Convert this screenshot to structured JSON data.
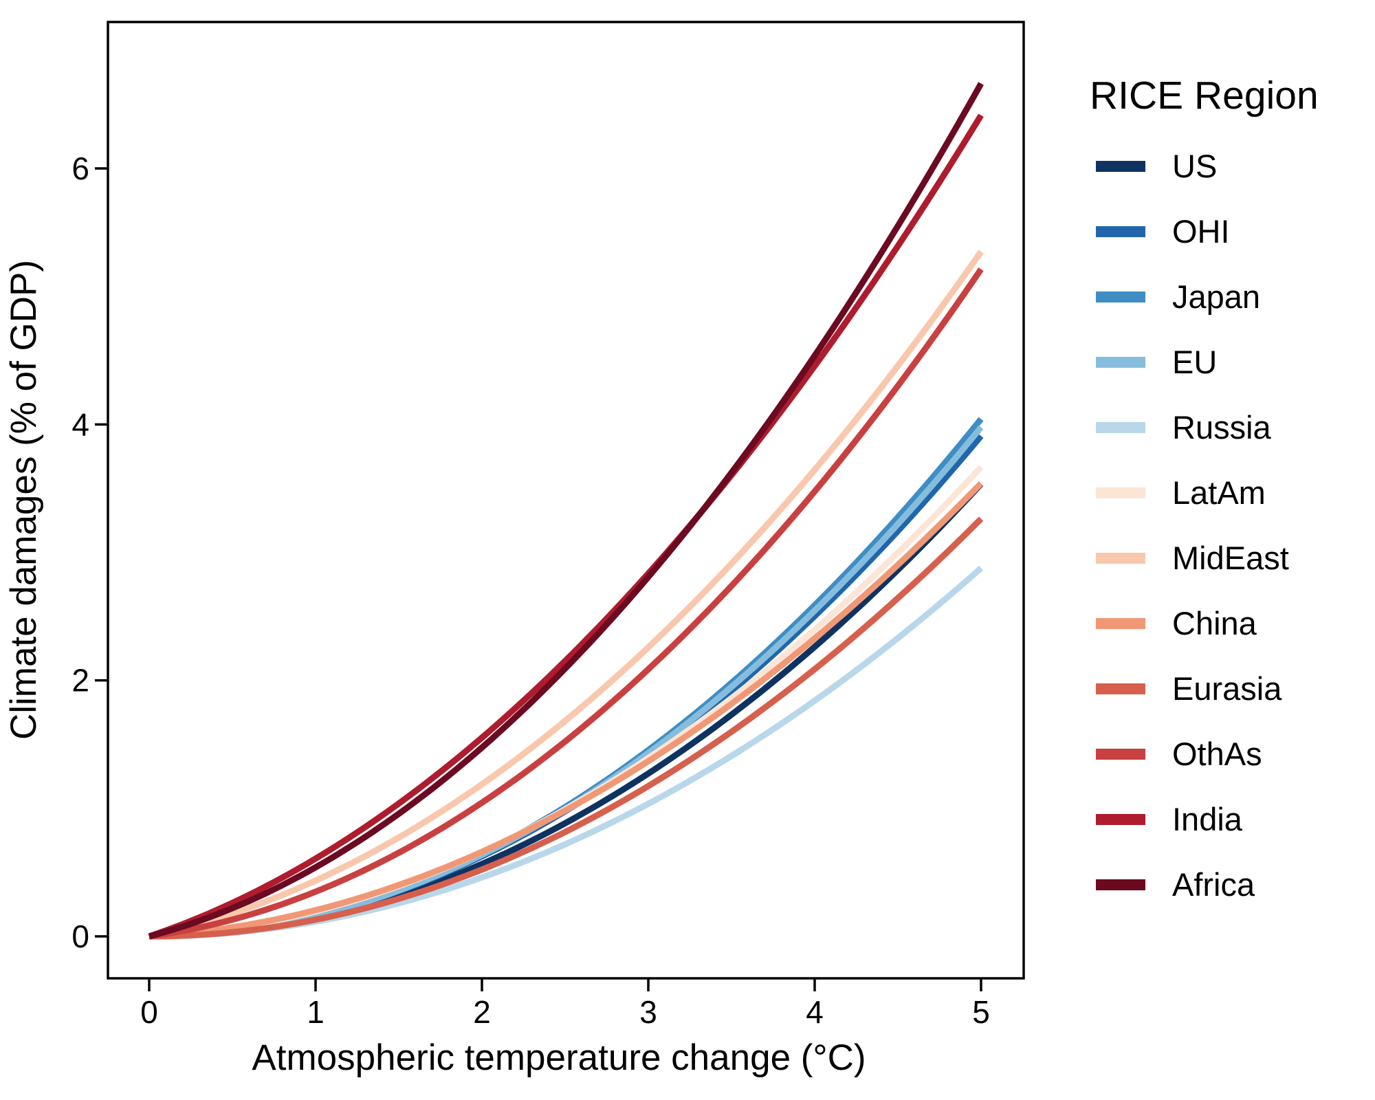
{
  "chart_data": {
    "type": "line",
    "title": "",
    "xlabel": "Atmospheric temperature change (°C)",
    "ylabel": "Climate damages (% of GDP)",
    "legend_title": "RICE Region",
    "legend_position": "right",
    "grid": false,
    "panel_border": true,
    "x_ticks": [
      0,
      1,
      2,
      3,
      4,
      5
    ],
    "y_ticks": [
      0,
      2,
      4,
      6
    ],
    "xlim": [
      -0.25,
      5.26
    ],
    "ylim": [
      -0.33,
      7.14
    ],
    "curve_model": "damages_pct = a1*T + a2*T^2",
    "x": [
      0,
      1,
      2,
      3,
      4,
      5
    ],
    "series": [
      {
        "name": "US",
        "color": "#0e3361",
        "a1": 0.0,
        "a2": 0.1414,
        "values": [
          0,
          0.14,
          0.57,
          1.27,
          2.26,
          3.54
        ]
      },
      {
        "name": "OHI",
        "color": "#2166ac",
        "a1": 0.0,
        "a2": 0.1564,
        "values": [
          0,
          0.16,
          0.63,
          1.41,
          2.5,
          3.91
        ]
      },
      {
        "name": "Japan",
        "color": "#3e8ec4",
        "a1": 0.0,
        "a2": 0.1617,
        "values": [
          0,
          0.16,
          0.65,
          1.46,
          2.59,
          4.04
        ]
      },
      {
        "name": "EU",
        "color": "#86bddd",
        "a1": 0.0,
        "a2": 0.1591,
        "values": [
          0,
          0.16,
          0.64,
          1.43,
          2.55,
          3.98
        ]
      },
      {
        "name": "Russia",
        "color": "#b8d7ea",
        "a1": 0.0,
        "a2": 0.1151,
        "values": [
          0,
          0.12,
          0.46,
          1.04,
          1.84,
          2.88
        ]
      },
      {
        "name": "LatAm",
        "color": "#fbe5d6",
        "a1": 0.0609,
        "a2": 0.1345,
        "values": [
          0,
          0.2,
          0.66,
          1.39,
          2.4,
          3.67
        ]
      },
      {
        "name": "MidEast",
        "color": "#f9c7ac",
        "a1": 0.277,
        "a2": 0.1586,
        "values": [
          0,
          0.44,
          1.19,
          2.26,
          3.65,
          5.35
        ]
      },
      {
        "name": "China",
        "color": "#f09876",
        "a1": 0.0785,
        "a2": 0.1259,
        "values": [
          0,
          0.2,
          0.66,
          1.37,
          2.33,
          3.54
        ]
      },
      {
        "name": "Eurasia",
        "color": "#d6604d",
        "a1": 0.0,
        "a2": 0.1305,
        "values": [
          0,
          0.13,
          0.52,
          1.17,
          2.09,
          3.26
        ]
      },
      {
        "name": "OthAs",
        "color": "#c94040",
        "a1": 0.1755,
        "a2": 0.1734,
        "values": [
          0,
          0.35,
          1.04,
          2.09,
          3.48,
          5.21
        ]
      },
      {
        "name": "India",
        "color": "#ae1c2d",
        "a1": 0.4385,
        "a2": 0.1689,
        "values": [
          0,
          0.61,
          1.55,
          2.84,
          4.46,
          6.42
        ]
      },
      {
        "name": "Africa",
        "color": "#6b0a20",
        "a1": 0.3411,
        "a2": 0.1983,
        "values": [
          0,
          0.54,
          1.48,
          2.81,
          4.54,
          6.66
        ]
      }
    ]
  },
  "styles": {
    "background": "#ffffff",
    "axis_color": "#000000",
    "text_color": "#000000"
  }
}
